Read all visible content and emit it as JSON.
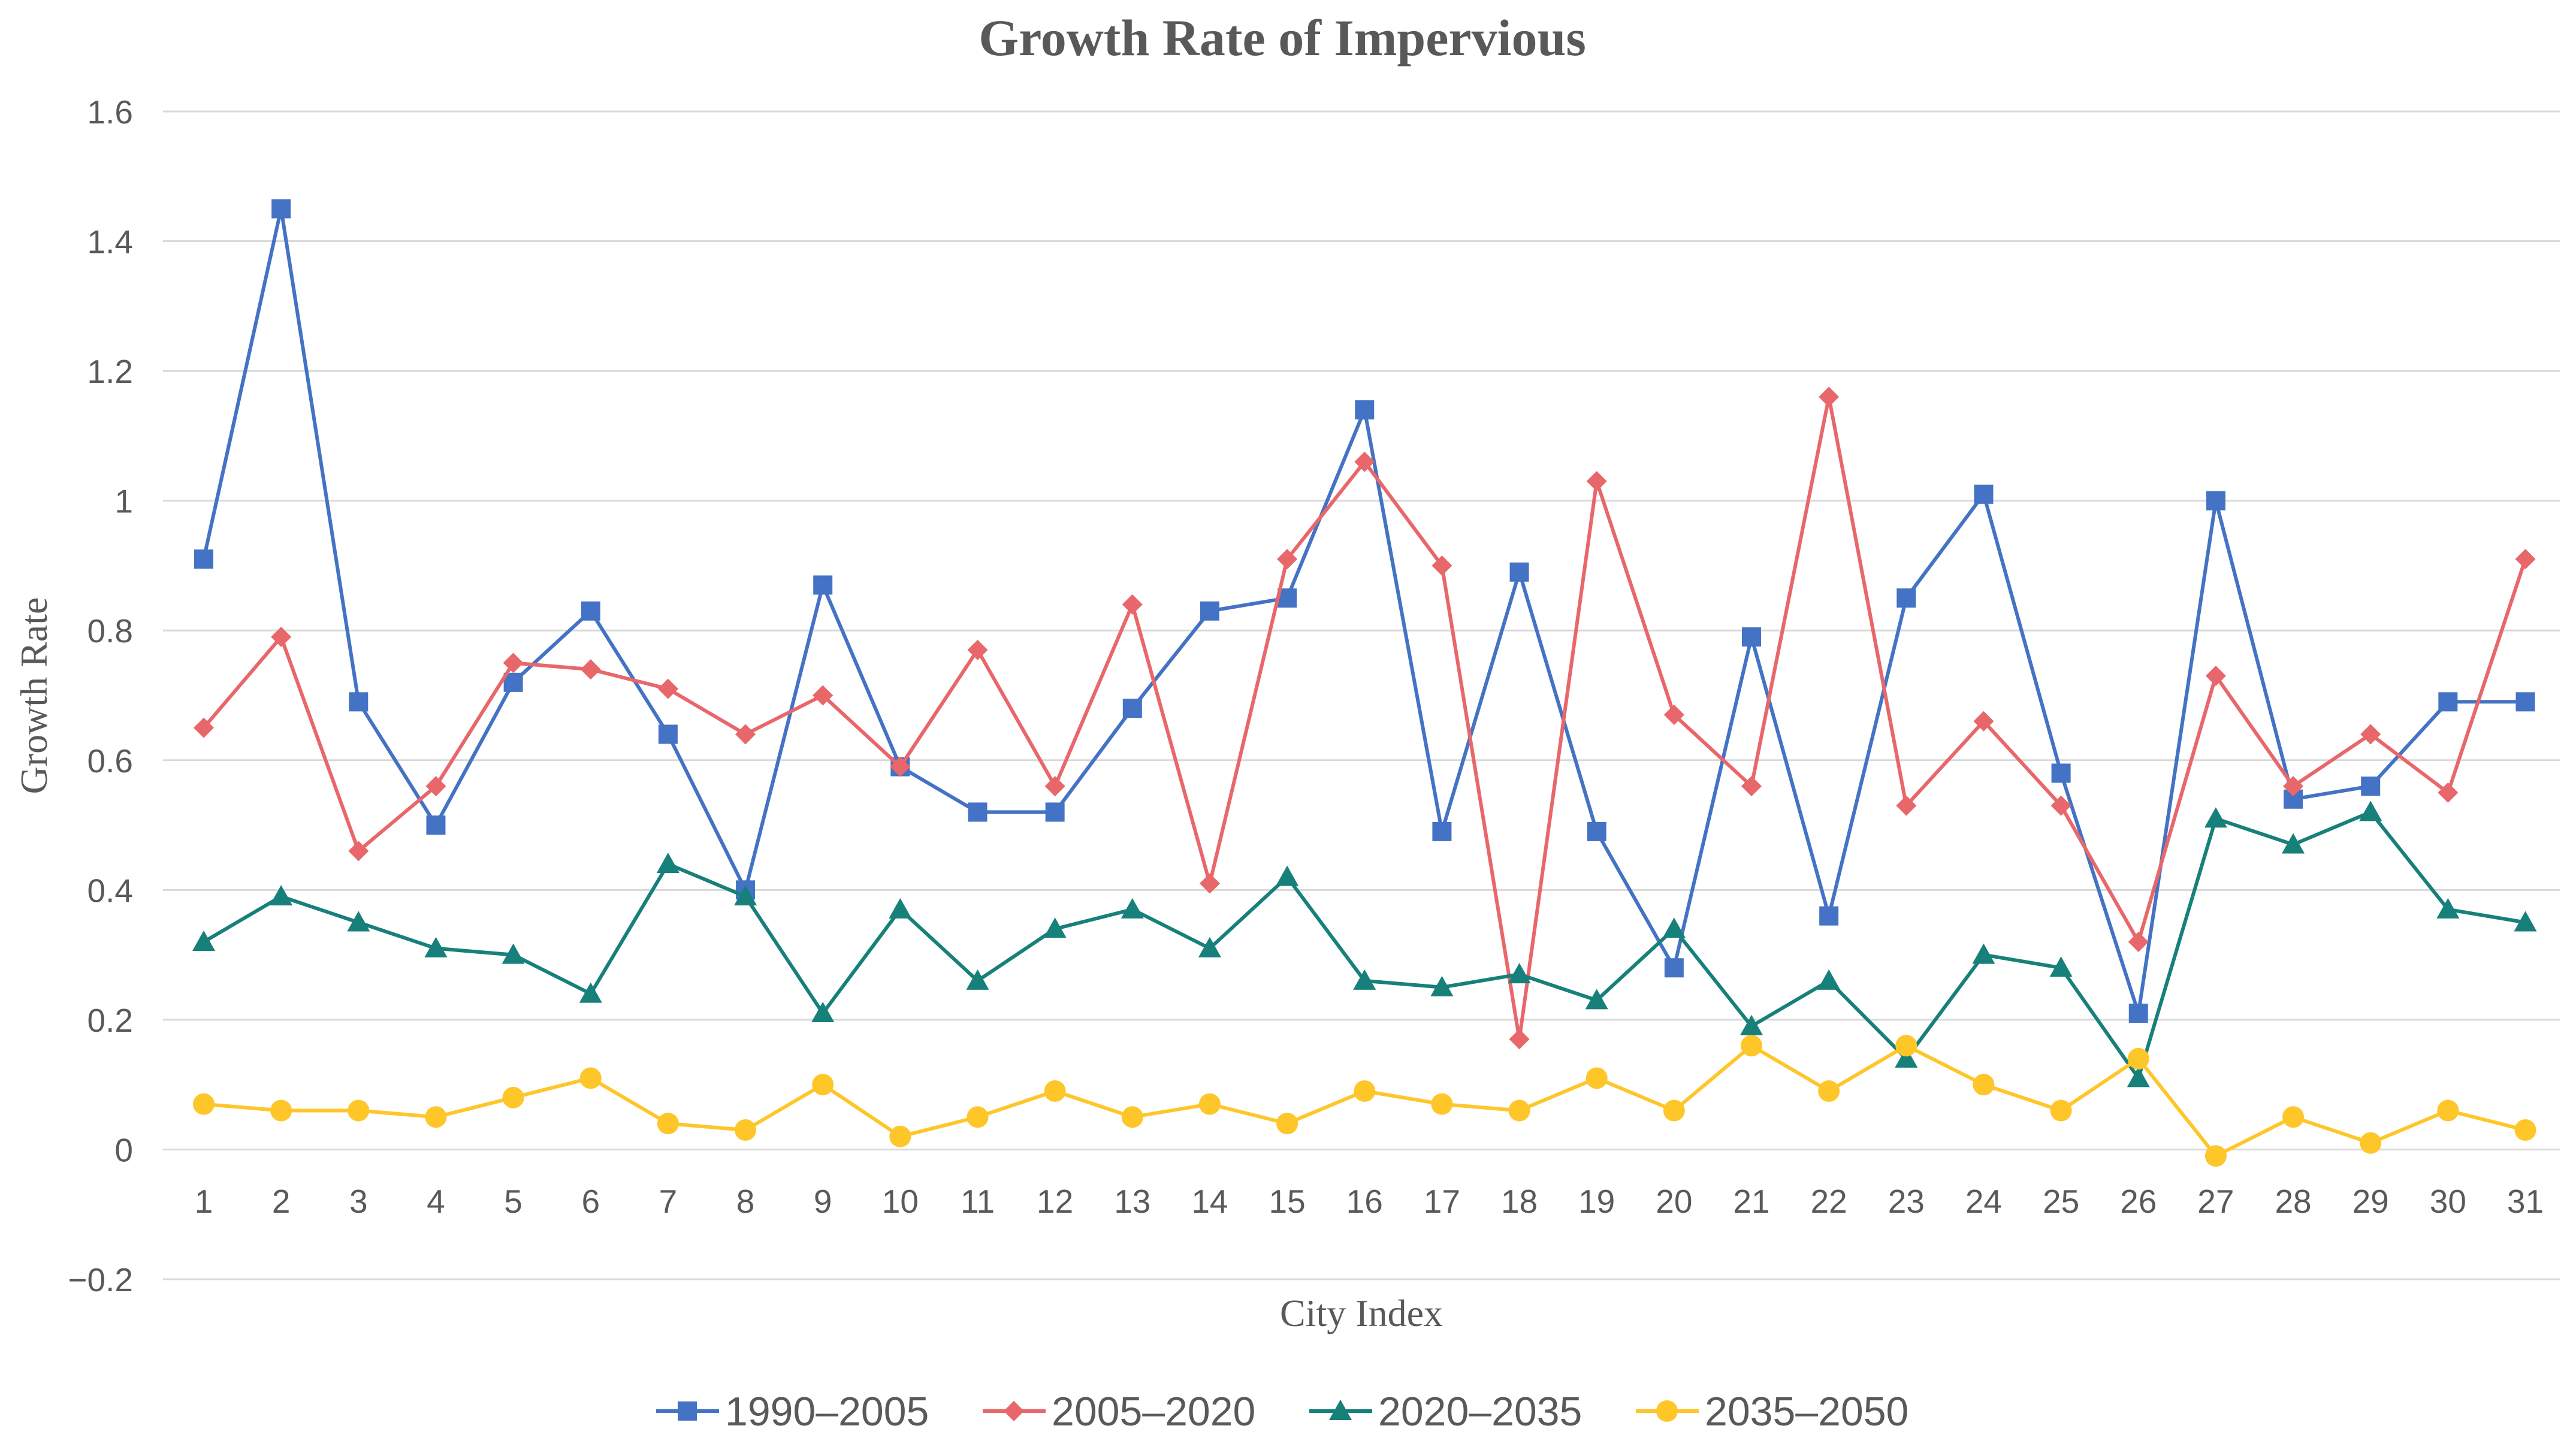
{
  "chart_data": {
    "type": "line",
    "title": "Growth Rate of Impervious",
    "xlabel": "City Index",
    "ylabel": "Growth Rate",
    "ylim": [
      -0.2,
      1.6
    ],
    "yticks": [
      "−0.2",
      "0",
      "0.2",
      "0.4",
      "0.6",
      "0.8",
      "1",
      "1.2",
      "1.4",
      "1.6"
    ],
    "ytick_values": [
      -0.2,
      0,
      0.2,
      0.4,
      0.6,
      0.8,
      1,
      1.2,
      1.4,
      1.6
    ],
    "grid": true,
    "legend_position": "bottom",
    "categories": [
      "1",
      "2",
      "3",
      "4",
      "5",
      "6",
      "7",
      "8",
      "9",
      "10",
      "11",
      "12",
      "13",
      "14",
      "15",
      "16",
      "17",
      "18",
      "19",
      "20",
      "21",
      "22",
      "23",
      "24",
      "25",
      "26",
      "27",
      "28",
      "29",
      "30",
      "31"
    ],
    "series": [
      {
        "name": "1990–2005",
        "color": "#4472c4",
        "marker": "square",
        "values": [
          0.91,
          1.45,
          0.69,
          0.5,
          0.72,
          0.83,
          0.64,
          0.4,
          0.87,
          0.59,
          0.52,
          0.52,
          0.68,
          0.83,
          0.85,
          1.14,
          0.49,
          0.89,
          0.49,
          0.28,
          0.79,
          0.36,
          0.85,
          1.01,
          0.58,
          0.21,
          1.0,
          0.54,
          0.56,
          0.69,
          0.69
        ]
      },
      {
        "name": "2005–2020",
        "color": "#e8676b",
        "marker": "diamond",
        "values": [
          0.65,
          0.79,
          0.46,
          0.56,
          0.75,
          0.74,
          0.71,
          0.64,
          0.7,
          0.59,
          0.77,
          0.56,
          0.84,
          0.41,
          0.91,
          1.06,
          0.9,
          0.17,
          1.03,
          0.67,
          0.56,
          1.16,
          0.53,
          0.66,
          0.53,
          0.32,
          0.73,
          0.56,
          0.64,
          0.55,
          0.91
        ]
      },
      {
        "name": "2020–2035",
        "color": "#17807a",
        "marker": "triangle",
        "values": [
          0.32,
          0.39,
          0.35,
          0.31,
          0.3,
          0.24,
          0.44,
          0.39,
          0.21,
          0.37,
          0.26,
          0.34,
          0.37,
          0.31,
          0.42,
          0.26,
          0.25,
          0.27,
          0.23,
          0.34,
          0.19,
          0.26,
          0.14,
          0.3,
          0.28,
          0.11,
          0.51,
          0.47,
          0.52,
          0.37,
          0.35
        ]
      },
      {
        "name": "2035–2050",
        "color": "#ffc629",
        "marker": "circle",
        "values": [
          0.07,
          0.06,
          0.06,
          0.05,
          0.08,
          0.11,
          0.04,
          0.03,
          0.1,
          0.02,
          0.05,
          0.09,
          0.05,
          0.07,
          0.04,
          0.09,
          0.07,
          0.06,
          0.11,
          0.06,
          0.16,
          0.09,
          0.16,
          0.1,
          0.06,
          0.14,
          -0.01,
          0.05,
          0.01,
          0.06,
          0.03
        ]
      }
    ]
  }
}
